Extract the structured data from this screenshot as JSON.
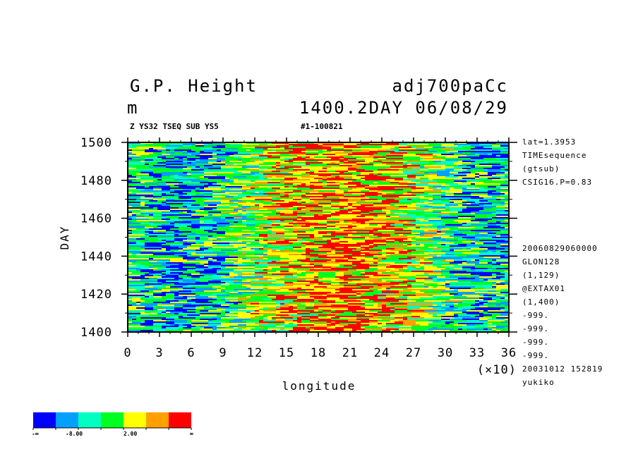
{
  "header": {
    "title_left": "G.P. Height",
    "title_right": "adj700paCc",
    "units": "m",
    "time_label": "1400.2DAY 06/08/29",
    "subtitle_left": "Z YS32 TSEQ SUB YS5",
    "subtitle_right": "#1-100821"
  },
  "side_info_top": [
    "lat=1.3953",
    "TIMEsequence",
    "(gtsub)",
    "CSIG16.P=0.83"
  ],
  "side_info_bottom": [
    "20060829060000",
    "GLON128",
    "(1,129)",
    "@EXTAX01",
    "(1,400)",
    "-999.",
    "-999.",
    "-999.",
    "-999.",
    "20031012 152819",
    "yukiko"
  ],
  "colorbar": {
    "colors": [
      "#0000ff",
      "#00a0ff",
      "#00ffc0",
      "#00ff20",
      "#ffff00",
      "#ffa000",
      "#ff0000"
    ],
    "labels": [
      "-∞",
      "-8.00",
      "2.00",
      "∞"
    ]
  },
  "chart_data": {
    "type": "heatmap",
    "title": "G.P. Height",
    "xlabel": "longitude",
    "ylabel": "DAY",
    "x_unit_label": "(×10)",
    "xlim": [
      0,
      36
    ],
    "ylim": [
      1400,
      1500
    ],
    "x_ticks": [
      "0",
      "3",
      "6",
      "9",
      "12",
      "15",
      "18",
      "21",
      "24",
      "27",
      "30",
      "33",
      "36"
    ],
    "y_ticks": [
      "1400",
      "1420",
      "1440",
      "1460",
      "1480",
      "1500"
    ],
    "levels": [
      -8.0,
      2.0
    ],
    "grid": false
  }
}
